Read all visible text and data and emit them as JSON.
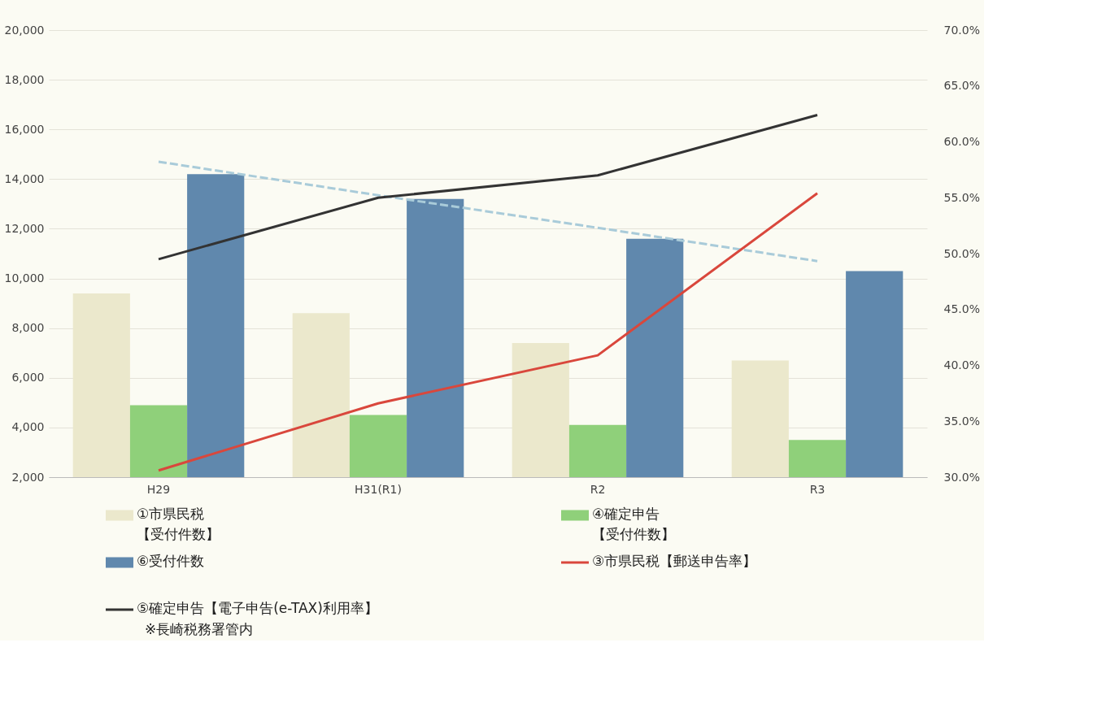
{
  "chart_data": {
    "type": "bar",
    "categories": [
      "H29",
      "H31(R1)",
      "R2",
      "R3"
    ],
    "series": [
      {
        "name": "①市県民税【受付件数】",
        "color": "#ebe8cc",
        "values": [
          9400,
          8600,
          7400,
          6700
        ]
      },
      {
        "name": "④確定申告【受付件数】",
        "color": "#8fd07a",
        "values": [
          4900,
          4500,
          4100,
          3500
        ]
      },
      {
        "name": "⑥受付件数",
        "color": "#6088ad",
        "values": [
          14200,
          13200,
          11600,
          10300
        ]
      },
      {
        "name": "③市県民税【郵送申告率】",
        "type": "line",
        "axis": "y2",
        "color": "#d9473c",
        "values": [
          30.6,
          36.6,
          40.9,
          55.4
        ]
      },
      {
        "name": "⑤確定申告【電子申告(e-TAX)利用率】",
        "type": "line",
        "axis": "y2",
        "color": "#333333",
        "values": [
          49.5,
          55.0,
          57.0,
          62.4
        ]
      },
      {
        "type": "line",
        "color": "#a9cbd9",
        "line_style": "dashed",
        "values": [
          14700,
          13350,
          12040,
          10700
        ]
      }
    ],
    "ylim": [
      2000,
      20000
    ],
    "yticks": [
      {
        "value": 2000,
        "label": "2,000"
      },
      {
        "value": 4000,
        "label": "4,000"
      },
      {
        "value": 6000,
        "label": "6,000"
      },
      {
        "value": 8000,
        "label": "8,000"
      },
      {
        "value": 10000,
        "label": "10,000"
      },
      {
        "value": 12000,
        "label": "12,000"
      },
      {
        "value": 14000,
        "label": "14,000"
      },
      {
        "value": 16000,
        "label": "16,000"
      },
      {
        "value": 18000,
        "label": "18,000"
      },
      {
        "value": 20000,
        "label": "20,000"
      }
    ],
    "y2lim": [
      30,
      70
    ],
    "y2ticks": [
      {
        "value": 30,
        "label": "30.0%"
      },
      {
        "value": 35,
        "label": "35.0%"
      },
      {
        "value": 40,
        "label": "40.0%"
      },
      {
        "value": 45,
        "label": "45.0%"
      },
      {
        "value": 50,
        "label": "50.0%"
      },
      {
        "value": 55,
        "label": "55.0%"
      },
      {
        "value": 60,
        "label": "60.0%"
      },
      {
        "value": 65,
        "label": "65.0%"
      },
      {
        "value": 70,
        "label": "70.0%"
      }
    ],
    "grid": "y",
    "legend": "bottom",
    "annotations": [
      "※長崎税務署管内"
    ]
  }
}
